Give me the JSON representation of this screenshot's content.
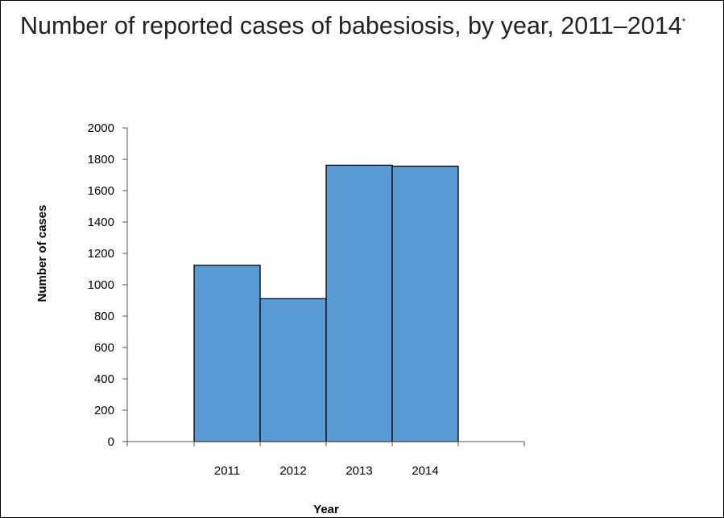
{
  "chart_data": {
    "type": "bar",
    "title": "Number of reported cases of babesiosis, by year, 2011–2014",
    "title_superscript": "*",
    "xlabel": "Year",
    "ylabel": "Number of cases",
    "categories": [
      "2011",
      "2012",
      "2013",
      "2014"
    ],
    "values": [
      1124,
      911,
      1762,
      1756
    ],
    "ylim": [
      0,
      2000
    ],
    "yticks": [
      0,
      200,
      400,
      600,
      800,
      1000,
      1200,
      1400,
      1600,
      1800,
      2000
    ],
    "bar_color": "#5b9bd5",
    "bar_edge_color": "#000000",
    "grid": false,
    "legend": "none"
  }
}
